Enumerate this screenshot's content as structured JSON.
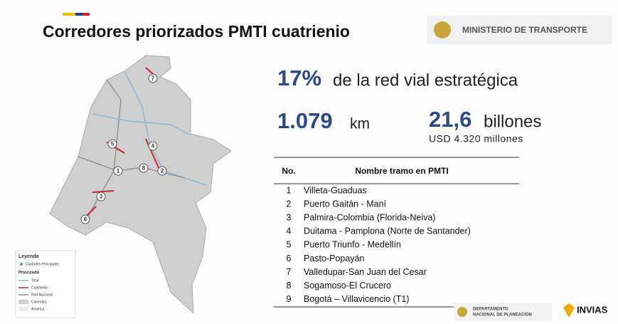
{
  "header": {
    "title": "Corredores priorizados PMTI cuatrienio",
    "ministry": "MINISTERIO DE TRANSPORTE"
  },
  "stats": {
    "share": "17%",
    "share_text": "de la red vial estratégica",
    "length": "1.079",
    "length_unit": "km",
    "cost": "21,6",
    "cost_unit": "billones",
    "cost_usd": "USD 4.320 millones"
  },
  "table": {
    "columns": [
      "No.",
      "Nombre tramo en PMTI"
    ],
    "rows": [
      [
        "1",
        "Villeta-Guaduas"
      ],
      [
        "2",
        "Puerto Gaitán - Maní"
      ],
      [
        "3",
        "Palmira-Colombia (Florida-Neiva)"
      ],
      [
        "4",
        "Duitama - Pamplona (Norte de Santander)"
      ],
      [
        "5",
        "Puerto Triunfo - Medellín"
      ],
      [
        "6",
        "Pasto-Popayán"
      ],
      [
        "7",
        "Valledupar-San Juan del Cesar"
      ],
      [
        "8",
        "Sogamoso-El Crucero"
      ],
      [
        "9",
        "Bogotá – Villavicencio (T1)"
      ]
    ]
  },
  "map": {
    "markers": [
      "7",
      "5",
      "4",
      "1",
      "8",
      "2",
      "3",
      "6"
    ]
  },
  "legend": {
    "title": "Leyenda",
    "cities": "Ciudades Principales",
    "group": "Priorizado",
    "items": [
      "Total",
      "Cuatrienio",
      "Red Nacional",
      "Colombia",
      "America"
    ]
  },
  "footer": {
    "dnp_1": "DEPARTAMENTO",
    "dnp_2": "NACIONAL DE PLANEACIÓN",
    "invias": "INVIAS"
  }
}
